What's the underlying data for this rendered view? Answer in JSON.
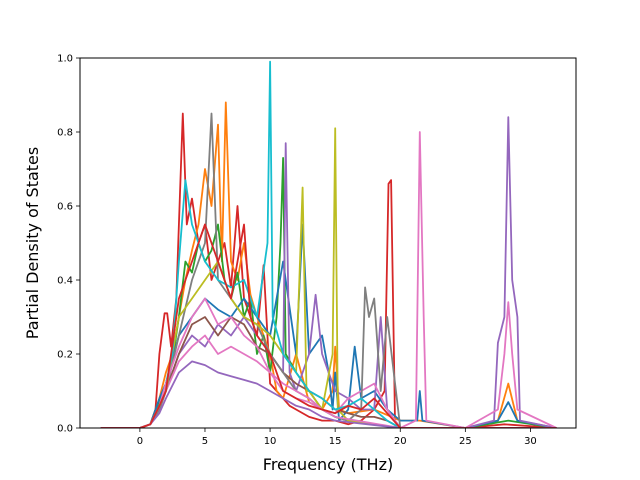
{
  "chart_data": {
    "type": "line",
    "title": "",
    "xlabel": "Frequency (THz)",
    "ylabel": "Partial Density of States",
    "xlim": [
      -4.6,
      33.5
    ],
    "ylim": [
      0.0,
      1.0
    ],
    "xticks": [
      0,
      5,
      10,
      15,
      20,
      25,
      30
    ],
    "yticks": [
      0.0,
      0.2,
      0.4,
      0.6,
      0.8,
      1.0
    ],
    "xtick_labels": [
      "0",
      "5",
      "10",
      "15",
      "20",
      "25",
      "30"
    ],
    "ytick_labels": [
      "0.0",
      "0.2",
      "0.4",
      "0.6",
      "0.8",
      "1.0"
    ],
    "grid": false,
    "legend": "none",
    "colors": [
      "#1f77b4",
      "#ff7f0e",
      "#2ca02c",
      "#d62728",
      "#9467bd",
      "#8c564b",
      "#e377c2",
      "#7f7f7f",
      "#bcbd22",
      "#17becf"
    ],
    "series": [
      {
        "color": "#d62728",
        "x": [
          -3.0,
          0.0,
          0.8,
          1.2,
          1.5,
          1.9,
          2.1,
          2.4,
          2.8,
          3.3,
          3.6,
          4.0,
          4.5,
          5.0,
          5.5,
          6.0,
          6.5,
          7.0,
          7.5,
          8.0,
          8.5,
          9.0,
          9.5,
          10.0,
          10.5,
          11.0,
          11.5,
          12.0,
          13.0,
          14.0,
          15.0,
          16.0,
          17.0,
          18.0,
          18.8,
          19.1,
          19.3,
          19.6,
          20.0,
          25.0,
          28.0,
          32.0
        ],
        "y": [
          0,
          0,
          0.01,
          0.05,
          0.2,
          0.31,
          0.31,
          0.22,
          0.35,
          0.85,
          0.55,
          0.62,
          0.5,
          0.55,
          0.4,
          0.45,
          0.5,
          0.38,
          0.6,
          0.35,
          0.3,
          0.25,
          0.44,
          0.12,
          0.1,
          0.08,
          0.06,
          0.05,
          0.03,
          0.02,
          0.02,
          0.01,
          0.02,
          0.05,
          0.1,
          0.66,
          0.67,
          0.02,
          0.0,
          0.0,
          0.01,
          0.0
        ]
      },
      {
        "color": "#ff7f0e",
        "x": [
          -3.0,
          0.0,
          0.8,
          1.5,
          2.0,
          2.5,
          3.0,
          3.5,
          4.0,
          4.5,
          5.0,
          5.5,
          6.0,
          6.3,
          6.6,
          7.0,
          7.5,
          8.0,
          8.5,
          9.0,
          9.5,
          10.0,
          10.5,
          11.0,
          12.0,
          13.0,
          14.0,
          14.8,
          15.0,
          15.3,
          16.0,
          18.0,
          20.0,
          21.5,
          25.0,
          27.5,
          28.3,
          29.0,
          32.0
        ],
        "y": [
          0,
          0,
          0.01,
          0.08,
          0.15,
          0.2,
          0.3,
          0.4,
          0.48,
          0.55,
          0.7,
          0.6,
          0.82,
          0.45,
          0.88,
          0.45,
          0.4,
          0.5,
          0.36,
          0.3,
          0.25,
          0.2,
          0.1,
          0.08,
          0.2,
          0.07,
          0.05,
          0.1,
          0.22,
          0.05,
          0.04,
          0.05,
          0.02,
          0.02,
          0.0,
          0.02,
          0.12,
          0.02,
          0.0
        ]
      },
      {
        "color": "#2ca02c",
        "x": [
          -3.0,
          0.0,
          0.8,
          1.5,
          2.0,
          2.5,
          3.0,
          3.5,
          4.0,
          4.5,
          5.0,
          5.5,
          6.0,
          6.5,
          7.0,
          7.5,
          8.0,
          8.5,
          9.0,
          9.5,
          10.0,
          10.5,
          10.8,
          11.0,
          11.2,
          12.0,
          13.0,
          14.0,
          15.0,
          16.0,
          18.0,
          20.0,
          25.0,
          28.3,
          32.0
        ],
        "y": [
          0,
          0,
          0.01,
          0.07,
          0.12,
          0.18,
          0.3,
          0.45,
          0.42,
          0.5,
          0.45,
          0.48,
          0.55,
          0.4,
          0.35,
          0.42,
          0.3,
          0.35,
          0.2,
          0.25,
          0.15,
          0.3,
          0.5,
          0.73,
          0.2,
          0.15,
          0.1,
          0.05,
          0.03,
          0.02,
          0.01,
          0.0,
          0.0,
          0.02,
          0.0
        ]
      },
      {
        "color": "#1f77b4",
        "x": [
          -3.0,
          0.0,
          0.8,
          1.5,
          2.0,
          3.0,
          4.0,
          5.0,
          6.0,
          7.0,
          8.0,
          9.0,
          10.0,
          11.0,
          12.0,
          12.5,
          13.0,
          14.0,
          14.5,
          14.8,
          15.0,
          15.3,
          16.0,
          16.5,
          17.0,
          18.0,
          19.0,
          20.0,
          21.3,
          21.5,
          21.7,
          25.0,
          27.5,
          28.3,
          29.0,
          32.0
        ],
        "y": [
          0,
          0,
          0.01,
          0.08,
          0.12,
          0.25,
          0.3,
          0.35,
          0.32,
          0.3,
          0.35,
          0.3,
          0.25,
          0.45,
          0.2,
          0.55,
          0.2,
          0.25,
          0.15,
          0.05,
          0.15,
          0.02,
          0.05,
          0.22,
          0.08,
          0.1,
          0.05,
          0.02,
          0.02,
          0.1,
          0.02,
          0.0,
          0.02,
          0.07,
          0.02,
          0.0
        ]
      },
      {
        "color": "#9467bd",
        "x": [
          -3.0,
          0.0,
          0.8,
          1.5,
          2.0,
          3.0,
          4.0,
          5.0,
          6.0,
          7.0,
          8.0,
          9.0,
          10.0,
          11.0,
          11.2,
          11.5,
          12.0,
          13.0,
          13.5,
          14.0,
          15.0,
          16.0,
          17.0,
          18.0,
          18.5,
          19.0,
          20.0,
          25.0,
          27.2,
          27.5,
          28.0,
          28.3,
          28.6,
          29.0,
          29.2,
          32.0
        ],
        "y": [
          0,
          0,
          0.01,
          0.05,
          0.1,
          0.2,
          0.25,
          0.22,
          0.28,
          0.25,
          0.3,
          0.25,
          0.2,
          0.15,
          0.77,
          0.15,
          0.1,
          0.2,
          0.36,
          0.2,
          0.1,
          0.08,
          0.05,
          0.05,
          0.3,
          0.05,
          0.0,
          0.0,
          0.02,
          0.23,
          0.3,
          0.84,
          0.4,
          0.3,
          0.02,
          0.0
        ]
      },
      {
        "color": "#8c564b",
        "x": [
          -3.0,
          0.0,
          0.8,
          1.5,
          2.0,
          3.0,
          4.0,
          5.0,
          6.0,
          7.0,
          8.0,
          9.0,
          10.0,
          11.0,
          12.0,
          13.0,
          14.0,
          15.0,
          16.0,
          17.0,
          18.0,
          19.0,
          20.0,
          32.0
        ],
        "y": [
          0,
          0,
          0.01,
          0.05,
          0.1,
          0.2,
          0.28,
          0.3,
          0.25,
          0.3,
          0.28,
          0.22,
          0.2,
          0.15,
          0.12,
          0.1,
          0.08,
          0.05,
          0.04,
          0.03,
          0.03,
          0.02,
          0.0,
          0.0
        ]
      },
      {
        "color": "#e377c2",
        "x": [
          -3.0,
          0.0,
          0.8,
          1.5,
          2.0,
          3.0,
          4.0,
          5.0,
          6.0,
          7.0,
          8.0,
          9.0,
          10.0,
          11.0,
          12.0,
          13.0,
          14.0,
          15.0,
          16.0,
          17.0,
          18.0,
          19.0,
          20.0,
          21.2,
          21.5,
          21.8,
          22.0,
          25.0,
          27.5,
          28.0,
          28.3,
          28.6,
          29.0,
          32.0
        ],
        "y": [
          0,
          0,
          0.01,
          0.05,
          0.1,
          0.18,
          0.22,
          0.25,
          0.2,
          0.22,
          0.2,
          0.18,
          0.15,
          0.1,
          0.08,
          0.07,
          0.05,
          0.04,
          0.08,
          0.1,
          0.12,
          0.05,
          0.0,
          0.02,
          0.8,
          0.3,
          0.02,
          0.0,
          0.05,
          0.2,
          0.34,
          0.2,
          0.05,
          0.0
        ]
      },
      {
        "color": "#7f7f7f",
        "x": [
          -3.0,
          0.0,
          0.8,
          1.5,
          2.0,
          3.0,
          4.0,
          5.0,
          5.5,
          6.0,
          7.0,
          8.0,
          9.0,
          10.0,
          11.0,
          12.0,
          13.0,
          14.0,
          15.0,
          16.0,
          17.0,
          17.3,
          17.6,
          18.0,
          18.5,
          19.0,
          20.0,
          32.0
        ],
        "y": [
          0,
          0,
          0.01,
          0.05,
          0.1,
          0.25,
          0.4,
          0.5,
          0.85,
          0.4,
          0.35,
          0.3,
          0.28,
          0.2,
          0.15,
          0.1,
          0.08,
          0.05,
          0.03,
          0.02,
          0.05,
          0.38,
          0.3,
          0.35,
          0.1,
          0.3,
          0.0,
          0.0
        ]
      },
      {
        "color": "#bcbd22",
        "x": [
          -3.0,
          0.0,
          0.8,
          1.5,
          2.0,
          3.0,
          4.0,
          5.0,
          6.0,
          7.0,
          8.0,
          9.0,
          10.0,
          11.0,
          12.0,
          12.5,
          12.8,
          13.0,
          14.0,
          14.8,
          15.0,
          15.2,
          16.0,
          18.0,
          20.0,
          32.0
        ],
        "y": [
          0,
          0,
          0.01,
          0.06,
          0.1,
          0.3,
          0.35,
          0.4,
          0.45,
          0.35,
          0.3,
          0.28,
          0.25,
          0.2,
          0.15,
          0.65,
          0.1,
          0.1,
          0.05,
          0.2,
          0.81,
          0.05,
          0.02,
          0.01,
          0.0,
          0.0
        ]
      },
      {
        "color": "#17becf",
        "x": [
          -3.0,
          0.0,
          0.8,
          1.5,
          2.0,
          2.5,
          3.0,
          3.5,
          4.0,
          4.5,
          5.0,
          6.0,
          7.0,
          8.0,
          9.0,
          9.8,
          10.0,
          10.2,
          11.0,
          12.0,
          13.0,
          14.0,
          15.0,
          16.0,
          17.0,
          18.0,
          19.0,
          20.0,
          32.0
        ],
        "y": [
          0,
          0,
          0.01,
          0.06,
          0.12,
          0.2,
          0.45,
          0.67,
          0.55,
          0.5,
          0.45,
          0.4,
          0.38,
          0.4,
          0.3,
          0.5,
          0.99,
          0.3,
          0.2,
          0.15,
          0.1,
          0.08,
          0.05,
          0.06,
          0.08,
          0.05,
          0.02,
          0.0,
          0.0
        ]
      },
      {
        "color": "#e377c2",
        "x": [
          -3.0,
          0.0,
          0.8,
          1.5,
          2.0,
          3.0,
          4.0,
          5.0,
          6.0,
          7.0,
          8.0,
          9.0,
          10.0,
          11.0,
          12.0,
          13.0,
          14.0,
          15.0,
          20.0,
          32.0
        ],
        "y": [
          0,
          0,
          0.01,
          0.06,
          0.12,
          0.22,
          0.3,
          0.35,
          0.28,
          0.3,
          0.25,
          0.22,
          0.15,
          0.12,
          0.1,
          0.08,
          0.05,
          0.03,
          0.0,
          0.0
        ]
      },
      {
        "color": "#9467bd",
        "x": [
          -3.0,
          0.0,
          0.8,
          1.5,
          2.0,
          3.0,
          4.0,
          5.0,
          6.0,
          7.0,
          8.0,
          9.0,
          10.0,
          11.0,
          12.0,
          13.0,
          14.0,
          15.0,
          20.0,
          32.0
        ],
        "y": [
          0,
          0,
          0.01,
          0.04,
          0.08,
          0.15,
          0.18,
          0.17,
          0.15,
          0.14,
          0.13,
          0.12,
          0.1,
          0.08,
          0.06,
          0.05,
          0.03,
          0.02,
          0.0,
          0.0
        ]
      },
      {
        "color": "#d62728",
        "x": [
          -3.0,
          0.0,
          0.8,
          1.5,
          2.0,
          3.0,
          4.0,
          5.0,
          6.0,
          7.0,
          8.0,
          8.5,
          9.0,
          10.0,
          11.0,
          12.0,
          13.0,
          14.0,
          15.0,
          16.0,
          17.0,
          18.0,
          19.0,
          20.0,
          32.0
        ],
        "y": [
          0,
          0,
          0.01,
          0.06,
          0.1,
          0.35,
          0.45,
          0.55,
          0.45,
          0.35,
          0.55,
          0.3,
          0.25,
          0.2,
          0.1,
          0.08,
          0.06,
          0.05,
          0.04,
          0.06,
          0.05,
          0.08,
          0.04,
          0.0,
          0.0
        ]
      }
    ]
  }
}
